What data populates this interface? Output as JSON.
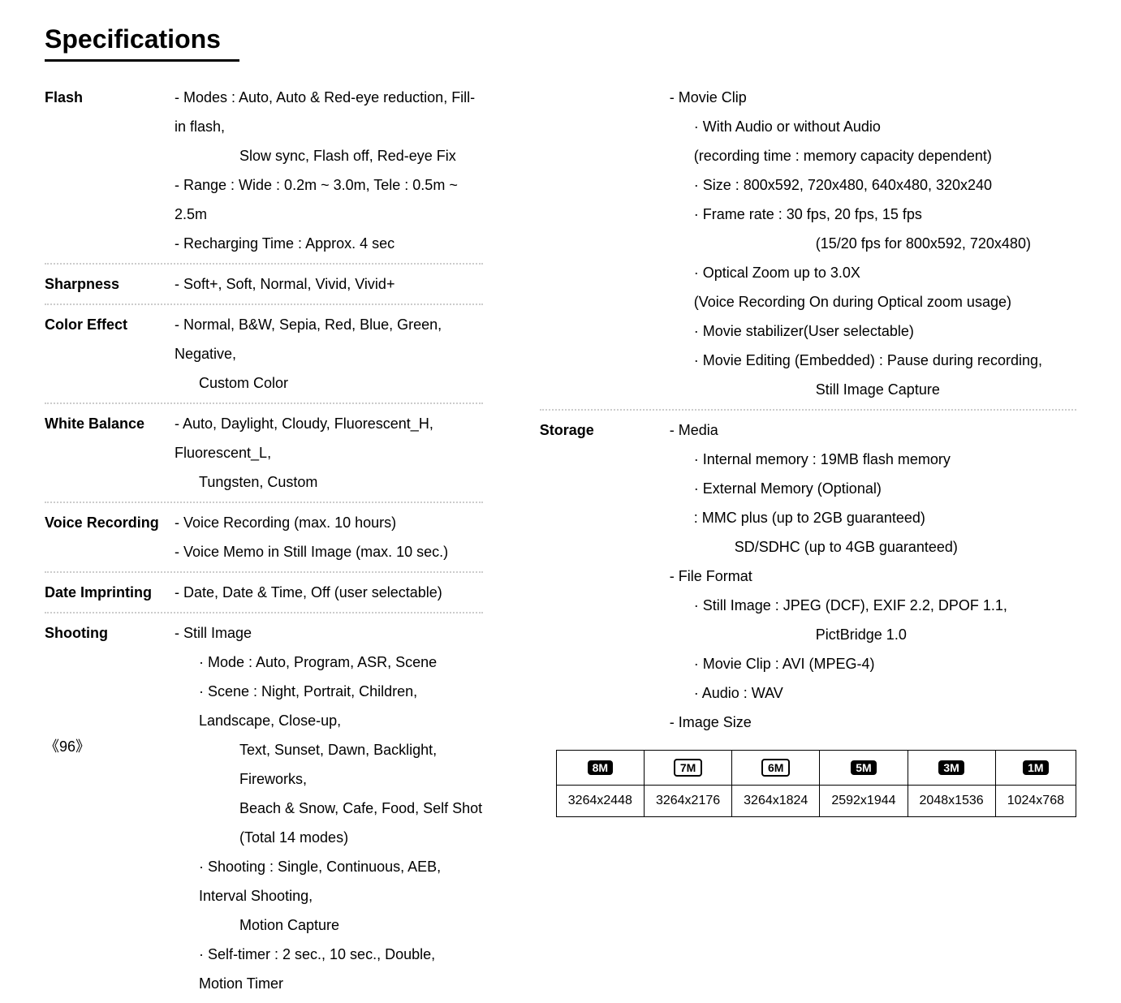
{
  "title": "Specifications",
  "page_number": "《96》",
  "left": {
    "rows": [
      {
        "label": "Flash",
        "lines": [
          {
            "t": "- Modes : Auto, Auto & Red-eye reduction, Fill-in flash,",
            "cls": ""
          },
          {
            "t": "Slow sync, Flash off, Red-eye Fix",
            "cls": "indent2"
          },
          {
            "t": "- Range : Wide : 0.2m ~ 3.0m, Tele : 0.5m ~ 2.5m",
            "cls": ""
          },
          {
            "t": "- Recharging Time : Approx. 4 sec",
            "cls": ""
          }
        ]
      },
      {
        "label": "Sharpness",
        "lines": [
          {
            "t": "- Soft+, Soft, Normal, Vivid, Vivid+",
            "cls": ""
          }
        ]
      },
      {
        "label": "Color Effect",
        "lines": [
          {
            "t": "- Normal, B&W, Sepia, Red, Blue, Green, Negative,",
            "cls": ""
          },
          {
            "t": "Custom Color",
            "cls": "indent1"
          }
        ]
      },
      {
        "label": "White Balance",
        "lines": [
          {
            "t": "- Auto, Daylight, Cloudy, Fluorescent_H, Fluorescent_L,",
            "cls": ""
          },
          {
            "t": "Tungsten, Custom",
            "cls": "indent1"
          }
        ]
      },
      {
        "label": "Voice Recording",
        "lines": [
          {
            "t": "- Voice Recording (max. 10 hours)",
            "cls": ""
          },
          {
            "t": "- Voice Memo in Still Image (max. 10 sec.)",
            "cls": ""
          }
        ]
      },
      {
        "label": "Date Imprinting",
        "lines": [
          {
            "t": "- Date, Date & Time, Off (user selectable)",
            "cls": ""
          }
        ]
      },
      {
        "label": "Shooting",
        "noborder": true,
        "lines": [
          {
            "t": "- Still Image",
            "cls": ""
          },
          {
            "t": "· Mode : Auto, Program, ASR, Scene",
            "cls": "indent1"
          },
          {
            "t": "· Scene : Night, Portrait, Children, Landscape, Close-up,",
            "cls": "indent1"
          },
          {
            "t": "Text, Sunset, Dawn, Backlight, Fireworks,",
            "cls": "indent2"
          },
          {
            "t": "Beach & Snow, Cafe, Food, Self Shot",
            "cls": "indent2"
          },
          {
            "t": "(Total 14 modes)",
            "cls": "indent2"
          },
          {
            "t": "· Shooting : Single, Continuous, AEB, Interval Shooting,",
            "cls": "indent1"
          },
          {
            "t": "Motion Capture",
            "cls": "indent2"
          },
          {
            "t": "· Self-timer : 2 sec., 10 sec., Double, Motion Timer",
            "cls": "indent1"
          }
        ]
      }
    ]
  },
  "right": {
    "rows": [
      {
        "label": "",
        "lines": [
          {
            "t": "- Movie Clip",
            "cls": ""
          },
          {
            "t": "· With Audio or without Audio",
            "cls": "indent1"
          },
          {
            "t": "(recording time : memory capacity dependent)",
            "cls": "indent1"
          },
          {
            "t": "· Size : 800x592, 720x480, 640x480, 320x240",
            "cls": "indent1"
          },
          {
            "t": "· Frame rate : 30 fps, 20 fps, 15 fps",
            "cls": "indent1"
          },
          {
            "t": "(15/20 fps for 800x592, 720x480)",
            "cls": "indent3"
          },
          {
            "t": "· Optical Zoom up to 3.0X",
            "cls": "indent1"
          },
          {
            "t": "(Voice Recording On during Optical zoom usage)",
            "cls": "indent1"
          },
          {
            "t": "· Movie stabilizer(User selectable)",
            "cls": "indent1"
          },
          {
            "t": "· Movie Editing (Embedded) : Pause during recording,",
            "cls": "indent1"
          },
          {
            "t": "Still Image Capture",
            "cls": "indent3"
          }
        ]
      },
      {
        "label": "Storage",
        "noborder": true,
        "lines": [
          {
            "t": "- Media",
            "cls": ""
          },
          {
            "t": "· Internal memory : 19MB flash memory",
            "cls": "indent1"
          },
          {
            "t": "· External Memory (Optional)",
            "cls": "indent1"
          },
          {
            "t": ": MMC plus (up to 2GB guaranteed)",
            "cls": "indent1"
          },
          {
            "t": "SD/SDHC (up to 4GB guaranteed)",
            "cls": "indent2"
          },
          {
            "t": "- File Format",
            "cls": ""
          },
          {
            "t": "· Still Image : JPEG (DCF), EXIF 2.2, DPOF 1.1,",
            "cls": "indent1"
          },
          {
            "t": "PictBridge 1.0",
            "cls": "indent3"
          },
          {
            "t": "· Movie Clip : AVI (MPEG-4)",
            "cls": "indent1"
          },
          {
            "t": "· Audio : WAV",
            "cls": "indent1"
          },
          {
            "t": "- Image Size",
            "cls": ""
          }
        ]
      }
    ]
  },
  "size_table": {
    "badges": [
      {
        "text": "8M",
        "outline": false
      },
      {
        "text": "7M",
        "outline": true
      },
      {
        "text": "6M",
        "outline": true
      },
      {
        "text": "5M",
        "outline": false
      },
      {
        "text": "3M",
        "outline": false
      },
      {
        "text": "1M",
        "outline": false
      }
    ],
    "values": [
      "3264x2448",
      "3264x2176",
      "3264x1824",
      "2592x1944",
      "2048x1536",
      "1024x768"
    ]
  }
}
